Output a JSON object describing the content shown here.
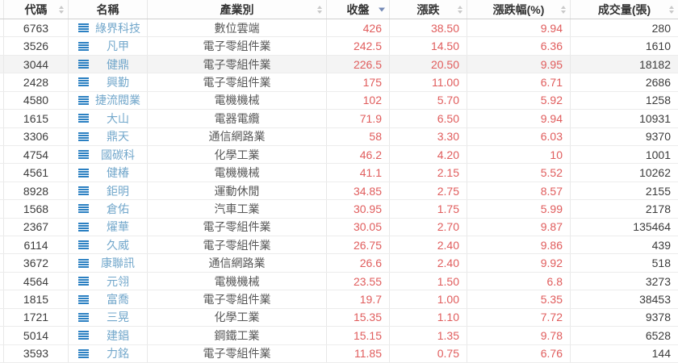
{
  "table": {
    "columns": [
      {
        "key": "code",
        "label": "代碼",
        "sort": "both"
      },
      {
        "key": "name",
        "label": "名稱",
        "sort": null
      },
      {
        "key": "industry",
        "label": "產業別",
        "sort": "both"
      },
      {
        "key": "close",
        "label": "收盤",
        "sort": "desc"
      },
      {
        "key": "change",
        "label": "漲跌",
        "sort": "both"
      },
      {
        "key": "pct",
        "label": "漲跌幅(%)",
        "sort": "both"
      },
      {
        "key": "volume",
        "label": "成交量(張)",
        "sort": "both"
      }
    ],
    "rows": [
      {
        "code": "6763",
        "name": "綠界科技",
        "industry": "數位雲端",
        "close": "426",
        "change": "38.50",
        "pct": "9.94",
        "volume": "280",
        "highlighted": false
      },
      {
        "code": "3526",
        "name": "凡甲",
        "industry": "電子零組件業",
        "close": "242.5",
        "change": "14.50",
        "pct": "6.36",
        "volume": "1610",
        "highlighted": false
      },
      {
        "code": "3044",
        "name": "健鼎",
        "industry": "電子零組件業",
        "close": "226.5",
        "change": "20.50",
        "pct": "9.95",
        "volume": "18182",
        "highlighted": true
      },
      {
        "code": "2428",
        "name": "興勤",
        "industry": "電子零組件業",
        "close": "175",
        "change": "11.00",
        "pct": "6.71",
        "volume": "2686",
        "highlighted": false
      },
      {
        "code": "4580",
        "name": "捷流閥業",
        "industry": "電機機械",
        "close": "102",
        "change": "5.70",
        "pct": "5.92",
        "volume": "1258",
        "highlighted": false
      },
      {
        "code": "1615",
        "name": "大山",
        "industry": "電器電纜",
        "close": "71.9",
        "change": "6.50",
        "pct": "9.94",
        "volume": "10931",
        "highlighted": false
      },
      {
        "code": "3306",
        "name": "鼎天",
        "industry": "通信網路業",
        "close": "58",
        "change": "3.30",
        "pct": "6.03",
        "volume": "9370",
        "highlighted": false
      },
      {
        "code": "4754",
        "name": "國碳科",
        "industry": "化學工業",
        "close": "46.2",
        "change": "4.20",
        "pct": "10",
        "volume": "1001",
        "highlighted": false
      },
      {
        "code": "4561",
        "name": "健椿",
        "industry": "電機機械",
        "close": "41.1",
        "change": "2.15",
        "pct": "5.52",
        "volume": "10262",
        "highlighted": false
      },
      {
        "code": "8928",
        "name": "鉅明",
        "industry": "運動休閒",
        "close": "34.85",
        "change": "2.75",
        "pct": "8.57",
        "volume": "2155",
        "highlighted": false
      },
      {
        "code": "1568",
        "name": "倉佑",
        "industry": "汽車工業",
        "close": "30.95",
        "change": "1.75",
        "pct": "5.99",
        "volume": "2178",
        "highlighted": false
      },
      {
        "code": "2367",
        "name": "燿華",
        "industry": "電子零組件業",
        "close": "30.05",
        "change": "2.70",
        "pct": "9.87",
        "volume": "135464",
        "highlighted": false
      },
      {
        "code": "6114",
        "name": "久威",
        "industry": "電子零組件業",
        "close": "26.75",
        "change": "2.40",
        "pct": "9.86",
        "volume": "439",
        "highlighted": false
      },
      {
        "code": "3672",
        "name": "康聯訊",
        "industry": "通信網路業",
        "close": "26.6",
        "change": "2.40",
        "pct": "9.92",
        "volume": "518",
        "highlighted": false
      },
      {
        "code": "4564",
        "name": "元翎",
        "industry": "電機機械",
        "close": "23.55",
        "change": "1.50",
        "pct": "6.8",
        "volume": "3273",
        "highlighted": false
      },
      {
        "code": "1815",
        "name": "富喬",
        "industry": "電子零組件業",
        "close": "19.7",
        "change": "1.00",
        "pct": "5.35",
        "volume": "38453",
        "highlighted": false
      },
      {
        "code": "1721",
        "name": "三晃",
        "industry": "化學工業",
        "close": "15.35",
        "change": "1.10",
        "pct": "7.72",
        "volume": "9378",
        "highlighted": false
      },
      {
        "code": "5014",
        "name": "建錩",
        "industry": "鋼鐵工業",
        "close": "15.15",
        "change": "1.35",
        "pct": "9.78",
        "volume": "6528",
        "highlighted": false
      },
      {
        "code": "3593",
        "name": "力銘",
        "industry": "電子零組件業",
        "close": "11.85",
        "change": "0.75",
        "pct": "6.76",
        "volume": "144",
        "highlighted": false
      }
    ]
  },
  "colors": {
    "up_red": "#e05c5c",
    "name_link_blue": "#72a7cb",
    "list_icon_blue": "#2b80c2",
    "sort_active_blue": "#7388b5",
    "sort_idle_gray": "#c9c9c9",
    "header_text": "#333333",
    "highlight_row_bg": "#f4f4f4"
  },
  "icons": {
    "list_icon": "list-icon",
    "sort_both_icon": "sort-up-down-icon",
    "sort_desc_icon": "sort-descending-icon"
  }
}
